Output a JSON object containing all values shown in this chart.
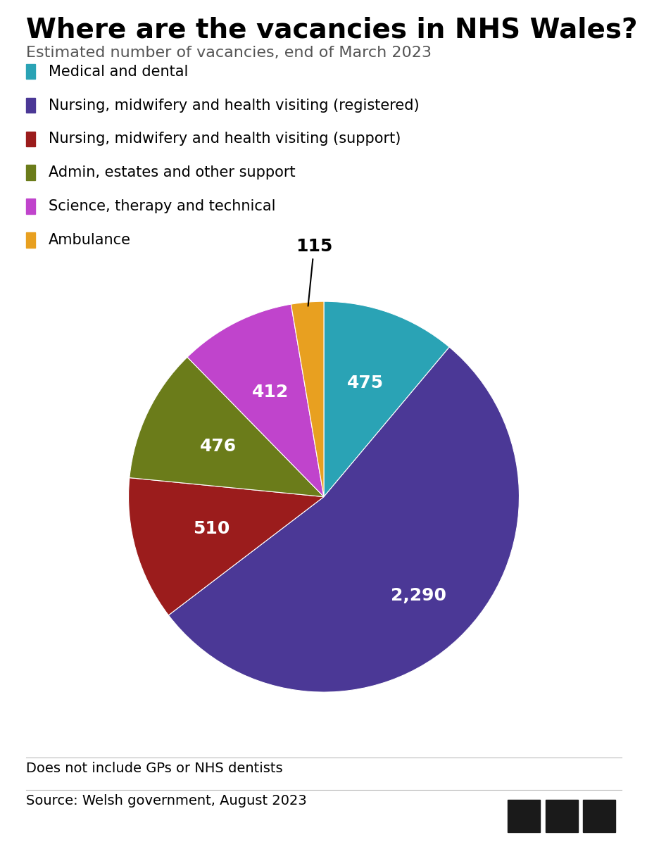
{
  "title": "Where are the vacancies in NHS Wales?",
  "subtitle": "Estimated number of vacancies, end of March 2023",
  "categories": [
    "Medical and dental",
    "Nursing, midwifery and health visiting (registered)",
    "Nursing, midwifery and health visiting (support)",
    "Admin, estates and other support",
    "Science, therapy and technical",
    "Ambulance"
  ],
  "values": [
    475,
    2290,
    510,
    476,
    412,
    115
  ],
  "colors": [
    "#2aa3b5",
    "#4b3896",
    "#9b1c1c",
    "#6b7c1a",
    "#c044cc",
    "#e8a020"
  ],
  "labels": [
    "475",
    "2,290",
    "510",
    "476",
    "412",
    "115"
  ],
  "footnote": "Does not include GPs or NHS dentists",
  "source": "Source: Welsh government, August 2023",
  "background_color": "#ffffff"
}
